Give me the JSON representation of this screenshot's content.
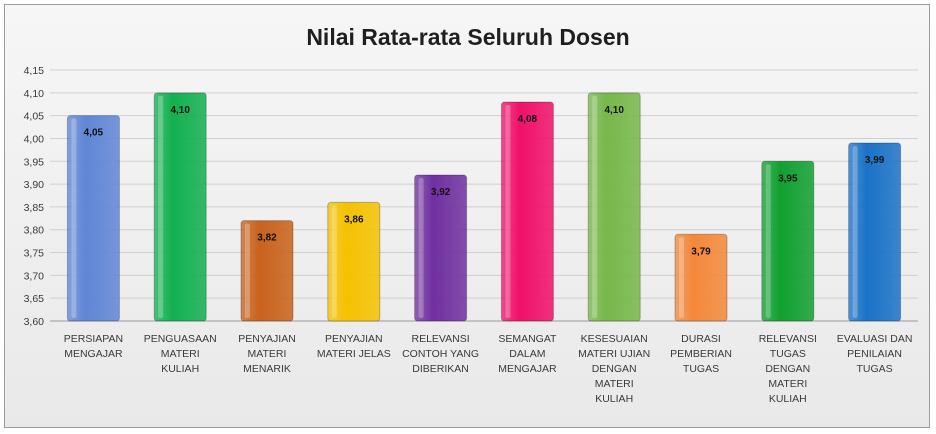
{
  "chart_data": {
    "type": "bar",
    "title": "Nilai Rata-rata Seluruh Dosen",
    "xlabel": "",
    "ylabel": "",
    "ylim": [
      3.6,
      4.15
    ],
    "ytick_step": 0.05,
    "yticks": [
      "3,60",
      "3,65",
      "3,70",
      "3,75",
      "3,80",
      "3,85",
      "3,90",
      "3,95",
      "4,00",
      "4,05",
      "4,10",
      "4,15"
    ],
    "grid": true,
    "legend": "none",
    "categories": [
      [
        "PERSIAPAN",
        "MENGAJAR"
      ],
      [
        "PENGUASAAN",
        "MATERI",
        "KULIAH"
      ],
      [
        "PENYAJIAN",
        "MATERI",
        "MENARIK"
      ],
      [
        "PENYAJIAN",
        "MATERI JELAS"
      ],
      [
        "RELEVANSI",
        "CONTOH YANG",
        "DIBERIKAN"
      ],
      [
        "SEMANGAT",
        "DALAM",
        "MENGAJAR"
      ],
      [
        "KESESUAIAN",
        "MATERI UJIAN",
        "DENGAN",
        "MATERI",
        "KULIAH"
      ],
      [
        "DURASI",
        "PEMBERIAN",
        "TUGAS"
      ],
      [
        "RELEVANSI",
        "TUGAS",
        "DENGAN",
        "MATERI",
        "KULIAH"
      ],
      [
        "EVALUASI DAN",
        "PENILAIAN",
        "TUGAS"
      ]
    ],
    "values": [
      4.05,
      4.1,
      3.82,
      3.86,
      3.92,
      4.08,
      4.1,
      3.79,
      3.95,
      3.99
    ],
    "value_labels": [
      "4,05",
      "4,10",
      "3,82",
      "3,86",
      "3,92",
      "4,08",
      "4,10",
      "3,79",
      "3,95",
      "3,99"
    ],
    "colors": [
      "#5f86d6",
      "#12b050",
      "#c9621c",
      "#f5c200",
      "#7030a0",
      "#f0106a",
      "#77b74a",
      "#f4883a",
      "#10a030",
      "#1a72c8"
    ]
  }
}
